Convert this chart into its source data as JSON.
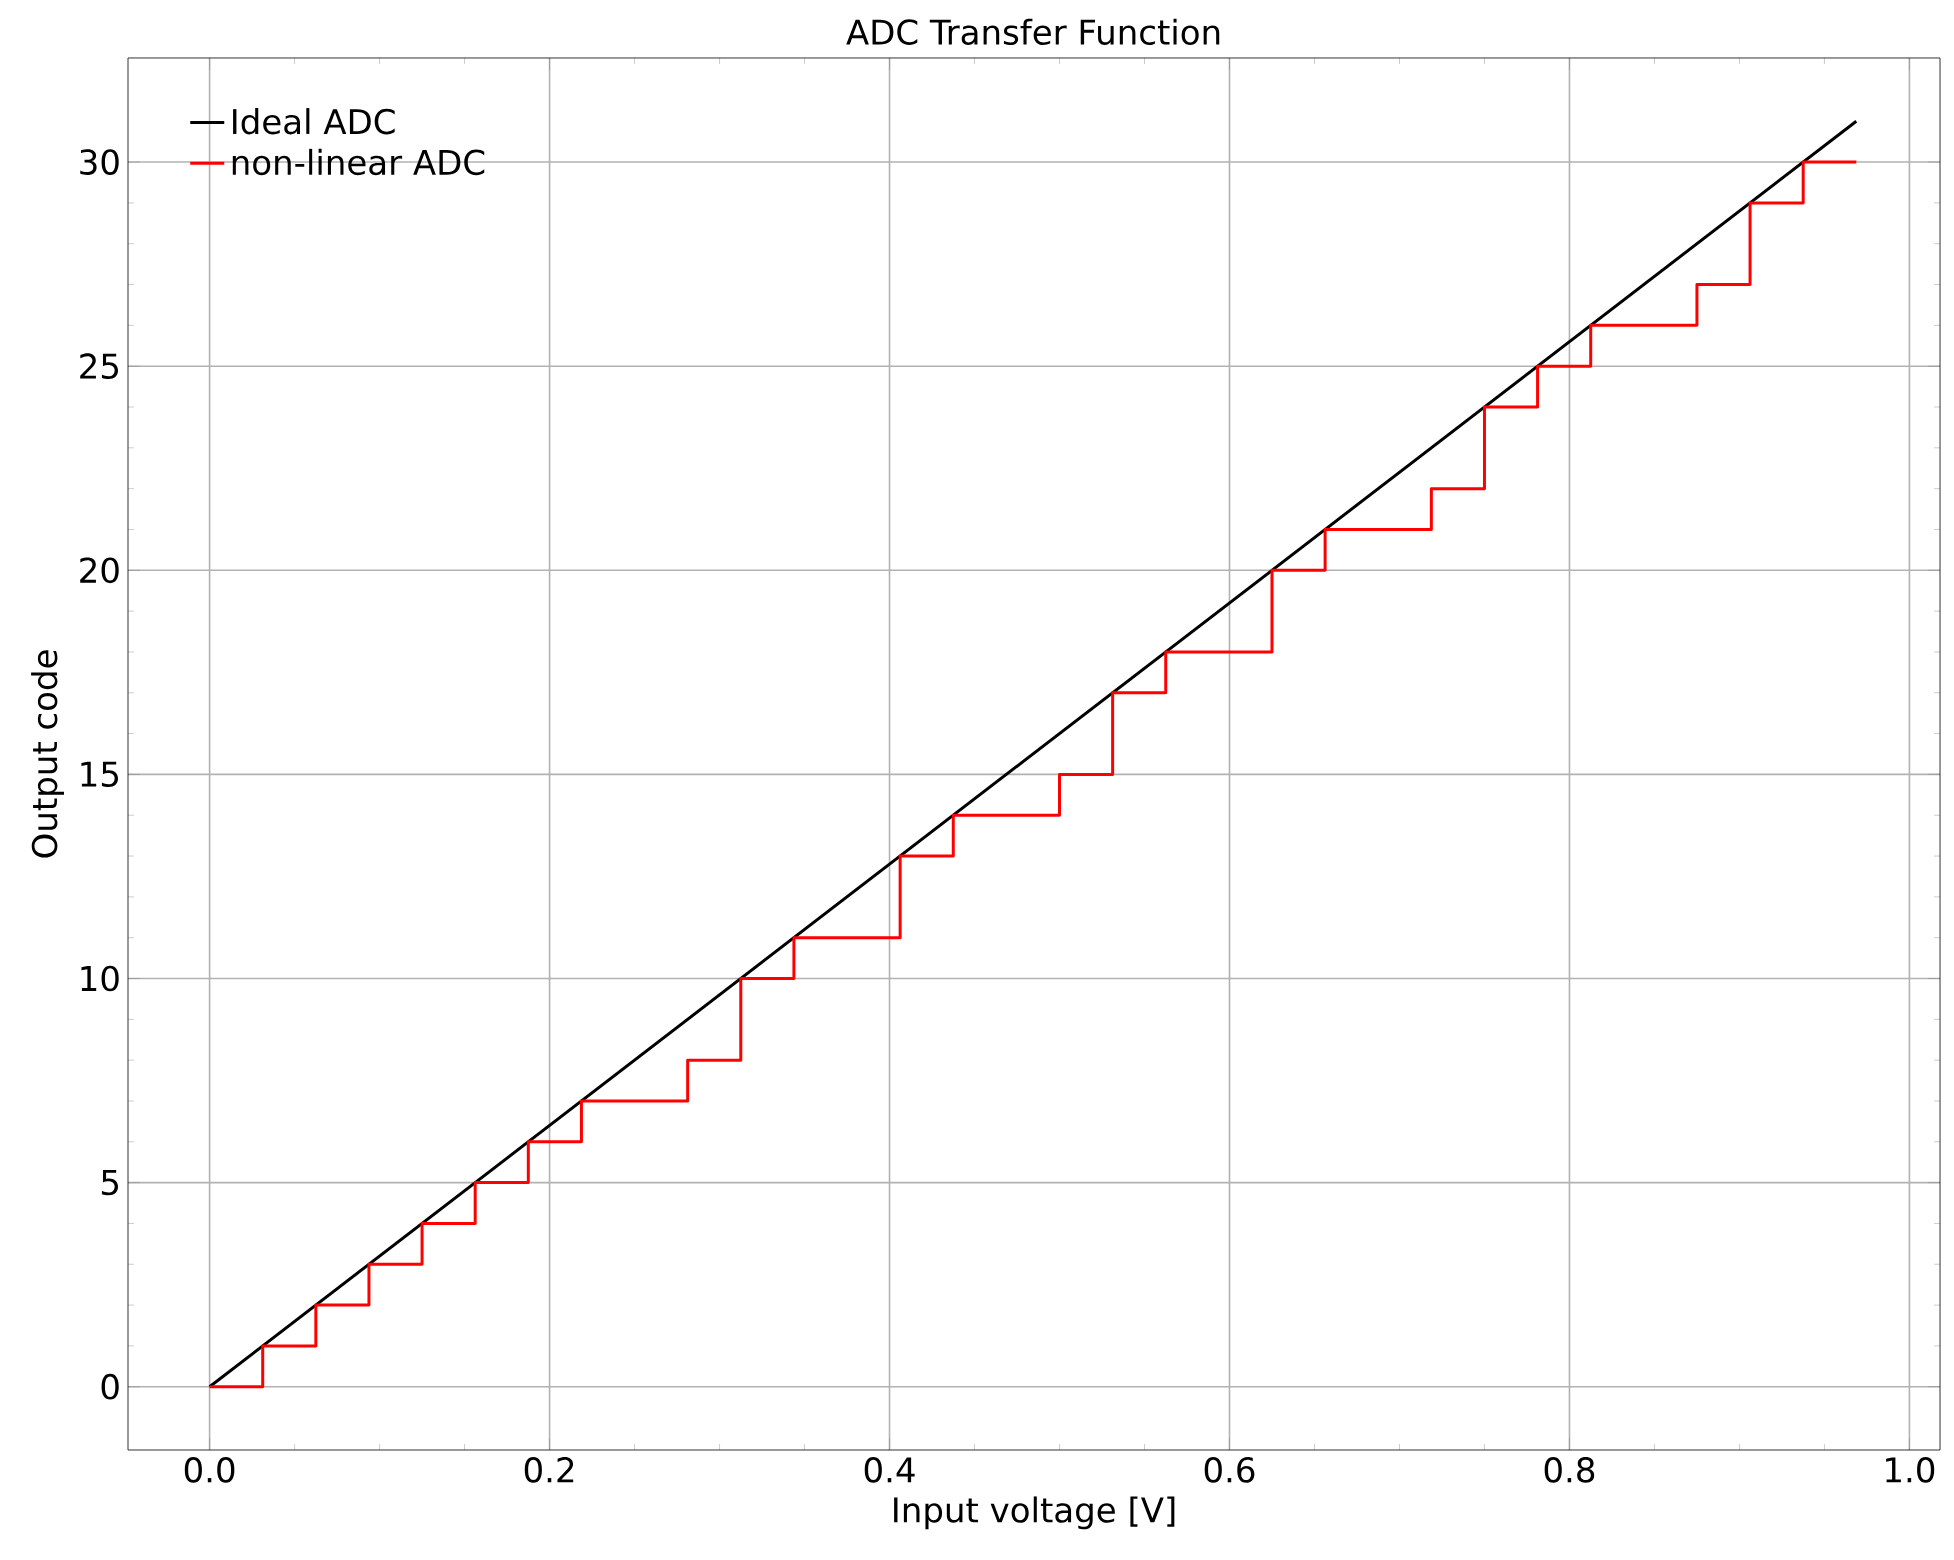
{
  "chart_data": {
    "type": "line",
    "title": "ADC Transfer Function",
    "xlabel": "Input voltage [V]",
    "ylabel": "Output code",
    "xlim": [
      -0.048,
      1.018
    ],
    "ylim": [
      -1.55,
      32.55
    ],
    "xticks": [
      {
        "value": 0,
        "label": "0.0"
      },
      0.2,
      0.4,
      0.6,
      0.8,
      {
        "value": 1,
        "label": "1.0"
      }
    ],
    "yticks": [
      0,
      5,
      10,
      15,
      20,
      25,
      30
    ],
    "grid": true,
    "legend": "top left",
    "series": [
      {
        "name": "Ideal ADC",
        "color": "#000000",
        "x": [
          0,
          0.96875
        ],
        "values": [
          0,
          31
        ]
      },
      {
        "name": "non-linear ADC",
        "type": "step",
        "color": "#ff0000",
        "x": [
          0,
          0.03125,
          0.0625,
          0.09375,
          0.125,
          0.15625,
          0.1875,
          0.21875,
          0.25,
          0.28125,
          0.3125,
          0.34375,
          0.375,
          0.40625,
          0.4375,
          0.46875,
          0.5,
          0.53125,
          0.5625,
          0.59375,
          0.625,
          0.65625,
          0.6875,
          0.71875,
          0.75,
          0.78125,
          0.8125,
          0.84375,
          0.875,
          0.90625,
          0.9375,
          0.96875
        ],
        "values": [
          0,
          1,
          2,
          3,
          4,
          5,
          6,
          7,
          7,
          8,
          10,
          11,
          11,
          13,
          14,
          14,
          15,
          17,
          18,
          18,
          20,
          21,
          21,
          22,
          24,
          25,
          26,
          26,
          27,
          29,
          30,
          30
        ]
      }
    ]
  }
}
